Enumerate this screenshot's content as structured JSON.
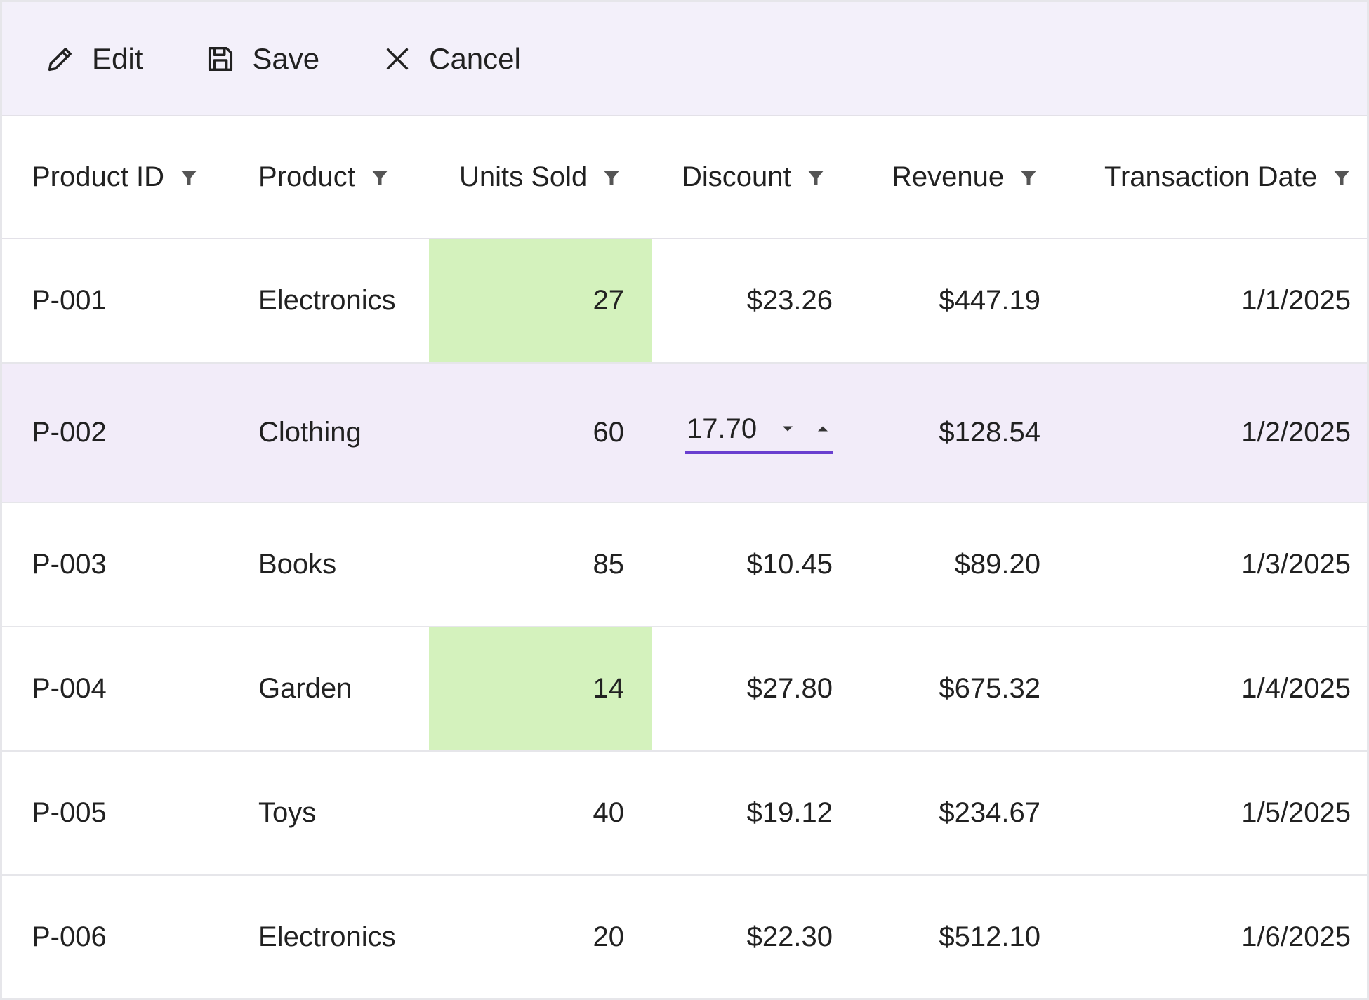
{
  "toolbar": {
    "edit_label": "Edit",
    "save_label": "Save",
    "cancel_label": "Cancel"
  },
  "columns": [
    "Product ID",
    "Product",
    "Units Sold",
    "Discount",
    "Revenue",
    "Transaction Date"
  ],
  "rows": [
    {
      "id": "P-001",
      "product": "Electronics",
      "units": "27",
      "discount": "$23.26",
      "revenue": "$447.19",
      "date": "1/1/2025"
    },
    {
      "id": "P-002",
      "product": "Clothing",
      "units": "60",
      "discount": "17.70",
      "revenue": "$128.54",
      "date": "1/2/2025"
    },
    {
      "id": "P-003",
      "product": "Books",
      "units": "85",
      "discount": "$10.45",
      "revenue": "$89.20",
      "date": "1/3/2025"
    },
    {
      "id": "P-004",
      "product": "Garden",
      "units": "14",
      "discount": "$27.80",
      "revenue": "$675.32",
      "date": "1/4/2025"
    },
    {
      "id": "P-005",
      "product": "Toys",
      "units": "40",
      "discount": "$19.12",
      "revenue": "$234.67",
      "date": "1/5/2025"
    },
    {
      "id": "P-006",
      "product": "Electronics",
      "units": "20",
      "discount": "$22.30",
      "revenue": "$512.10",
      "date": "1/6/2025"
    }
  ],
  "colors": {
    "toolbar_bg": "#f3f0fa",
    "editing_row_bg": "#f2ecf9",
    "highlight_cell_bg": "#d4f2bd",
    "editor_underline": "#6a3fd0"
  }
}
